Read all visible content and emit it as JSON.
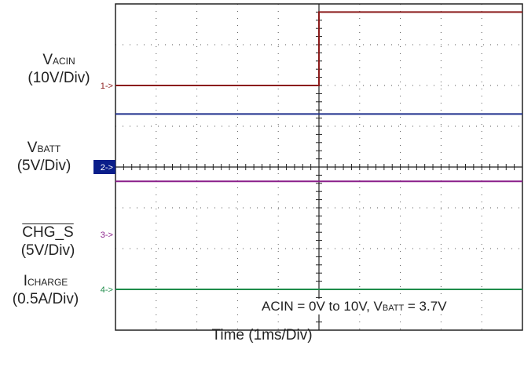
{
  "chart_data": {
    "type": "line",
    "x_divisions": 10,
    "y_divisions": 8,
    "trigger_division": 5,
    "xlabel": "Time (1ms/Div)",
    "condition": {
      "acin": "ACIN = 0V to 10V, V",
      "batt_sub": "BATT",
      "batt_val": " = 3.7V"
    },
    "series": [
      {
        "name_main": "V",
        "name_sub": "ACIN",
        "scale": "(10V/Div)",
        "marker": "1->",
        "color": "#8b1a1a",
        "marker_bg": "",
        "marker_color": "#8b1a1a",
        "ground_div": 2.0,
        "points": [
          [
            0,
            0.0
          ],
          [
            5,
            0.0
          ],
          [
            5,
            1.8
          ],
          [
            10,
            1.8
          ]
        ]
      },
      {
        "name_main": "V",
        "name_sub": "BATT",
        "scale": "(5V/Div)",
        "marker": "2->",
        "color": "#1e2f8c",
        "marker_bg": "#0a1e8a",
        "marker_color": "#ffffff",
        "ground_div": 4.0,
        "points": [
          [
            0,
            1.3
          ],
          [
            10,
            1.3
          ]
        ]
      },
      {
        "name_main": "CHG_S",
        "name_sub": "",
        "scale": "(5V/Div)",
        "marker": "3->",
        "color": "#8a1f8a",
        "marker_bg": "",
        "marker_color": "#8a1f8a",
        "ground_div": 5.65,
        "points": [
          [
            0,
            1.3
          ],
          [
            10,
            1.3
          ]
        ]
      },
      {
        "name_main": "I",
        "name_sub": "CHARGE",
        "scale": "(0.5A/Div)",
        "marker": "4->",
        "color": "#1e8c4a",
        "marker_bg": "",
        "marker_color": "#1e8c4a",
        "ground_div": 7.0,
        "points": [
          [
            0,
            0.0
          ],
          [
            10,
            0.0
          ]
        ]
      }
    ]
  }
}
